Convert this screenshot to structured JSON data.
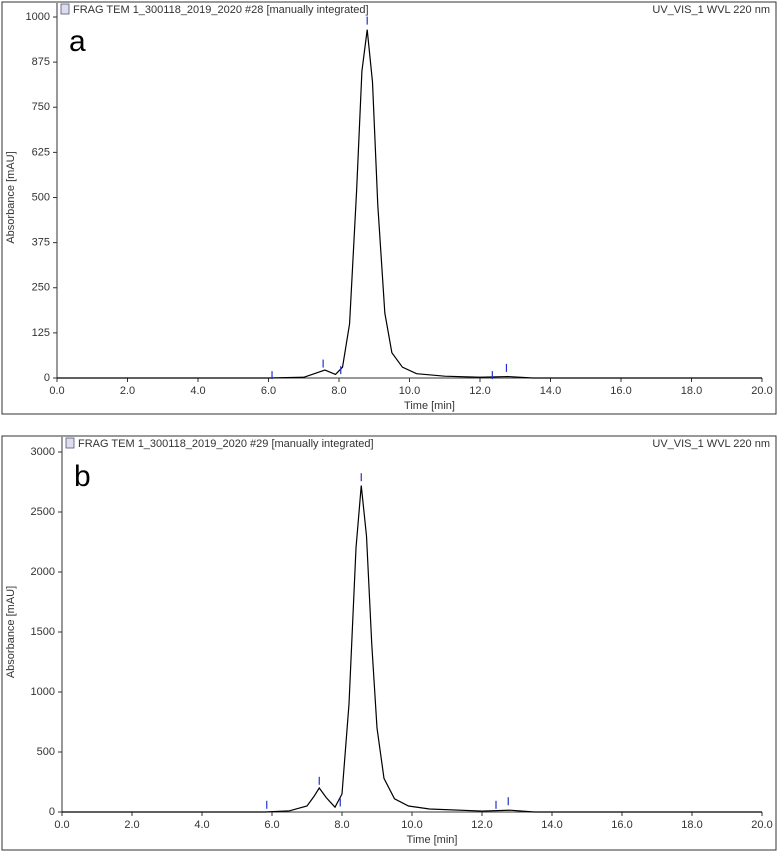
{
  "chart_data": [
    {
      "type": "line",
      "title": "FRAG TEM 1_300118_2019_2020 #28 [manually integrated]",
      "subtitle": "UV_VIS_1 WVL 220 nm",
      "panel_label": "a",
      "x_label": "Time [min]",
      "y_label": "Absorbance [mAU]",
      "x": [
        0,
        6.0,
        7.0,
        7.3,
        7.6,
        7.9,
        8.1,
        8.3,
        8.5,
        8.65,
        8.8,
        8.95,
        9.1,
        9.3,
        9.5,
        9.8,
        10.2,
        11,
        12,
        12.8,
        13.5,
        20
      ],
      "values": [
        0,
        0,
        2,
        12,
        22,
        10,
        30,
        150,
        520,
        850,
        965,
        820,
        480,
        180,
        70,
        30,
        12,
        5,
        2,
        4,
        0,
        0
      ],
      "color": "#000000",
      "marks_x": [
        6.1,
        7.55,
        8.05,
        8.8,
        12.35,
        12.75
      ],
      "marks_y": [
        8,
        40,
        22,
        990,
        8,
        28
      ],
      "marks_color": "#2233cc",
      "xlim": [
        0,
        20
      ],
      "ylim": [
        0,
        1000
      ],
      "xticks": [
        {
          "value": 0,
          "label": "0.0"
        },
        {
          "value": 2,
          "label": "2.0"
        },
        {
          "value": 4,
          "label": "4.0"
        },
        {
          "value": 6,
          "label": "6.0"
        },
        {
          "value": 8,
          "label": "8.0"
        },
        {
          "value": 10,
          "label": "10.0"
        },
        {
          "value": 12,
          "label": "12.0"
        },
        {
          "value": 14,
          "label": "14.0"
        },
        {
          "value": 16,
          "label": "16.0"
        },
        {
          "value": 18,
          "label": "18.0"
        },
        {
          "value": 20,
          "label": "20.0"
        }
      ],
      "yticks": [
        0,
        125,
        250,
        375,
        500,
        625,
        750,
        875,
        1000
      ]
    },
    {
      "type": "line",
      "title": "FRAG TEM 1_300118_2019_2020 #29 [manually integrated]",
      "subtitle": "UV_VIS_1 WVL 220 nm",
      "panel_label": "b",
      "x_label": "Time [min]",
      "y_label": "Absorbance [mAU]",
      "x": [
        0,
        5.8,
        6.5,
        7.0,
        7.2,
        7.35,
        7.55,
        7.8,
        8.0,
        8.2,
        8.4,
        8.55,
        8.7,
        8.85,
        9.0,
        9.2,
        9.5,
        9.9,
        10.5,
        12,
        12.8,
        13.5,
        20
      ],
      "values": [
        0,
        0,
        10,
        50,
        130,
        200,
        120,
        40,
        150,
        900,
        2200,
        2720,
        2300,
        1400,
        700,
        280,
        110,
        50,
        25,
        8,
        15,
        0,
        0
      ],
      "color": "#000000",
      "marks_x": [
        5.85,
        7.35,
        7.95,
        8.55,
        12.4,
        12.75
      ],
      "marks_y": [
        60,
        260,
        80,
        2790,
        60,
        90
      ],
      "marks_color": "#2233cc",
      "xlim": [
        0,
        20
      ],
      "ylim": [
        0,
        3000
      ],
      "xticks": [
        {
          "value": 0,
          "label": "0.0"
        },
        {
          "value": 2,
          "label": "2.0"
        },
        {
          "value": 4,
          "label": "4.0"
        },
        {
          "value": 6,
          "label": "6.0"
        },
        {
          "value": 8,
          "label": "8.0"
        },
        {
          "value": 10,
          "label": "10.0"
        },
        {
          "value": 12,
          "label": "12.0"
        },
        {
          "value": 14,
          "label": "14.0"
        },
        {
          "value": 16,
          "label": "16.0"
        },
        {
          "value": 18,
          "label": "18.0"
        },
        {
          "value": 20,
          "label": "20.0"
        }
      ],
      "yticks": [
        0,
        500,
        1000,
        1500,
        2000,
        2500,
        3000
      ]
    }
  ]
}
